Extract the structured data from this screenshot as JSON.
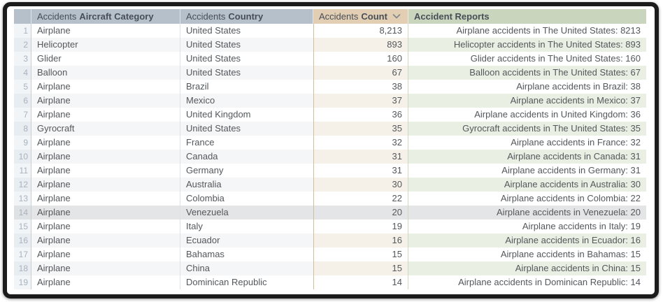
{
  "table": {
    "headers": {
      "category": {
        "prefix": "Accidents",
        "label": "Aircraft Category"
      },
      "country": {
        "prefix": "Accidents",
        "label": "Country"
      },
      "count": {
        "prefix": "Accidents",
        "label": "Count",
        "sort": "desc"
      },
      "reports": {
        "label": "Accident Reports"
      }
    },
    "highlighted_row": 14,
    "rows": [
      {
        "n": "1",
        "category": "Airplane",
        "country": "United States",
        "count": "8,213",
        "report": "Airplane accidents in The United States: 8213"
      },
      {
        "n": "2",
        "category": "Helicopter",
        "country": "United States",
        "count": "893",
        "report": "Helicopter accidents in The United States: 893"
      },
      {
        "n": "3",
        "category": "Glider",
        "country": "United States",
        "count": "160",
        "report": "Glider accidents in The United States: 160"
      },
      {
        "n": "4",
        "category": "Balloon",
        "country": "United States",
        "count": "67",
        "report": "Balloon accidents in The United States: 67"
      },
      {
        "n": "5",
        "category": "Airplane",
        "country": "Brazil",
        "count": "38",
        "report": "Airplane accidents in Brazil: 38"
      },
      {
        "n": "6",
        "category": "Airplane",
        "country": "Mexico",
        "count": "37",
        "report": "Airplane accidents in Mexico: 37"
      },
      {
        "n": "7",
        "category": "Airplane",
        "country": "United Kingdom",
        "count": "36",
        "report": "Airplane accidents in United Kingdom: 36"
      },
      {
        "n": "8",
        "category": "Gyrocraft",
        "country": "United States",
        "count": "35",
        "report": "Gyrocraft accidents in The United States: 35"
      },
      {
        "n": "9",
        "category": "Airplane",
        "country": "France",
        "count": "32",
        "report": "Airplane accidents in France: 32"
      },
      {
        "n": "10",
        "category": "Airplane",
        "country": "Canada",
        "count": "31",
        "report": "Airplane accidents in Canada: 31"
      },
      {
        "n": "11",
        "category": "Airplane",
        "country": "Germany",
        "count": "31",
        "report": "Airplane accidents in Germany: 31"
      },
      {
        "n": "12",
        "category": "Airplane",
        "country": "Australia",
        "count": "30",
        "report": "Airplane accidents in Australia: 30"
      },
      {
        "n": "13",
        "category": "Airplane",
        "country": "Colombia",
        "count": "22",
        "report": "Airplane accidents in Colombia: 22"
      },
      {
        "n": "14",
        "category": "Airplane",
        "country": "Venezuela",
        "count": "20",
        "report": "Airplane accidents in Venezuela: 20"
      },
      {
        "n": "15",
        "category": "Airplane",
        "country": "Italy",
        "count": "19",
        "report": "Airplane accidents in Italy: 19"
      },
      {
        "n": "16",
        "category": "Airplane",
        "country": "Ecuador",
        "count": "16",
        "report": "Airplane accidents in Ecuador: 16"
      },
      {
        "n": "17",
        "category": "Airplane",
        "country": "Bahamas",
        "count": "15",
        "report": "Airplane accidents in Bahamas: 15"
      },
      {
        "n": "18",
        "category": "Airplane",
        "country": "China",
        "count": "15",
        "report": "Airplane accidents in China: 15"
      },
      {
        "n": "19",
        "category": "Airplane",
        "country": "Dominican Republic",
        "count": "14",
        "report": "Airplane accidents in Dominican Republic: 14"
      }
    ]
  },
  "colors": {
    "frame": "#1b1b1b",
    "header_dimension": "#b6c0ca",
    "header_measure": "#e2ceb3",
    "header_table_calc": "#c9d6bd",
    "even_row_dimension": "#f4f6f8",
    "even_row_measure": "#f6f1e8",
    "even_row_table_calc": "#e9efe3",
    "hover_row": "#e4e5e7",
    "header_text": "#474e57",
    "cell_text": "#54585c",
    "row_number_text": "#a9b2bd"
  }
}
